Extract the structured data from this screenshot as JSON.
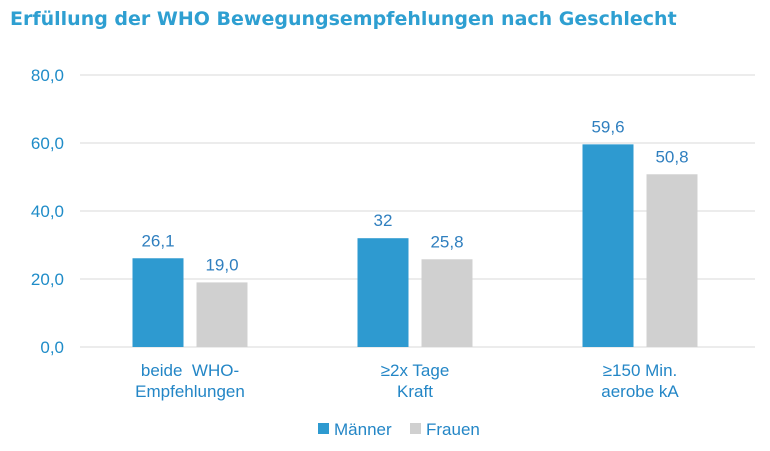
{
  "chart_data": {
    "type": "bar",
    "title": "Erfüllung der WHO Bewegungsempfehlungen nach Geschlecht",
    "categories": [
      [
        "beide  WHO-",
        "Empfehlungen"
      ],
      [
        "≥2x Tage",
        "Kraft"
      ],
      [
        "≥150 Min.",
        "aerobe kA"
      ]
    ],
    "series": [
      {
        "name": "Männer",
        "values": [
          26.1,
          32,
          59.6
        ],
        "labels": [
          "26,1",
          "32",
          "59,6"
        ],
        "color": "#2E9AD0"
      },
      {
        "name": "Frauen",
        "values": [
          19.0,
          25.8,
          50.8
        ],
        "labels": [
          "19,0",
          "25,8",
          "50,8"
        ],
        "color": "#D0D0D0"
      }
    ],
    "ylim": [
      0,
      80
    ],
    "yticks": [
      0,
      20,
      40,
      60,
      80
    ],
    "ytick_labels": [
      "0,0",
      "20,0",
      "40,0",
      "60,0",
      "80,0"
    ],
    "grid": true,
    "gridline_color": "#D9D9D9",
    "legend_position": "bottom-center"
  }
}
